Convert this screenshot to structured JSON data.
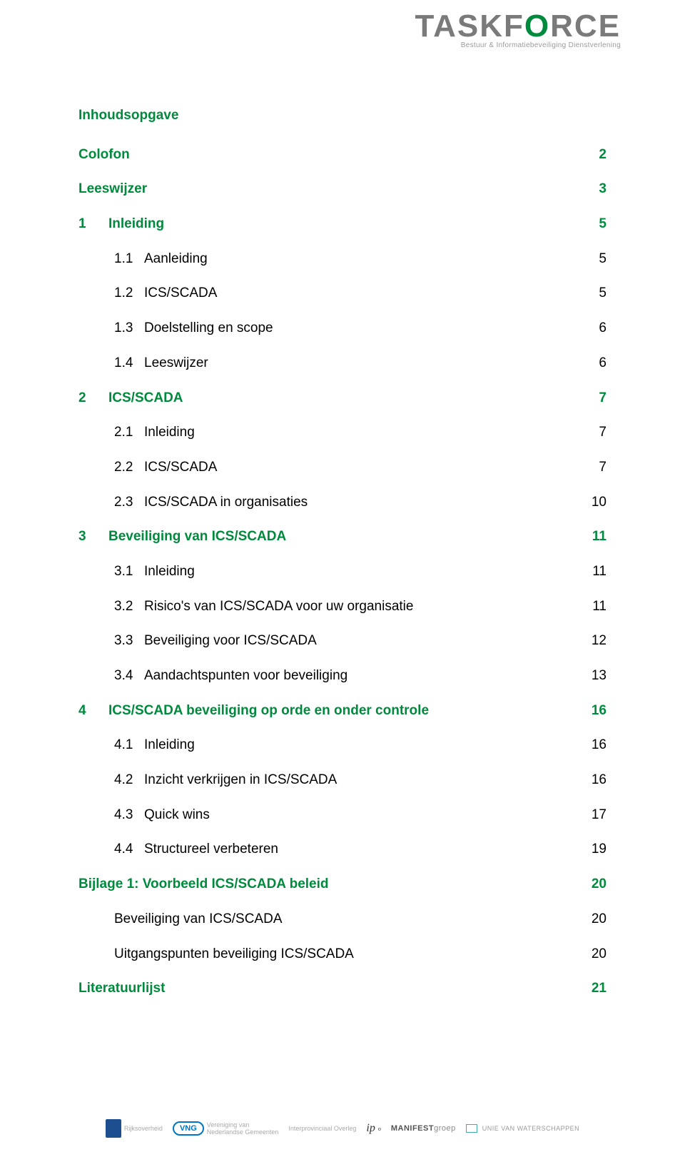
{
  "logo": {
    "text_part1": "TASKF",
    "text_part2": "ORCE",
    "o_char": "O",
    "tagline": "Bestuur & Informatiebeveiliging Dienstverlening"
  },
  "title": "Inhoudsopgave",
  "entries": [
    {
      "level": 0,
      "style": "green",
      "num": "",
      "label": "Colofon",
      "page": "2"
    },
    {
      "level": 0,
      "style": "green",
      "num": "",
      "label": "Leeswijzer",
      "page": "3"
    },
    {
      "level": 0,
      "style": "green",
      "num": "1",
      "label": "Inleiding",
      "page": "5"
    },
    {
      "level": 1,
      "style": "black",
      "num": "1.1",
      "label": "Aanleiding",
      "page": "5"
    },
    {
      "level": 1,
      "style": "black",
      "num": "1.2",
      "label": "ICS/SCADA",
      "page": "5"
    },
    {
      "level": 1,
      "style": "black",
      "num": "1.3",
      "label": "Doelstelling en scope",
      "page": "6"
    },
    {
      "level": 1,
      "style": "black",
      "num": "1.4",
      "label": "Leeswijzer",
      "page": "6"
    },
    {
      "level": 0,
      "style": "green",
      "num": "2",
      "label": "ICS/SCADA",
      "page": "7"
    },
    {
      "level": 1,
      "style": "black",
      "num": "2.1",
      "label": "Inleiding",
      "page": "7"
    },
    {
      "level": 1,
      "style": "black",
      "num": "2.2",
      "label": "ICS/SCADA",
      "page": "7"
    },
    {
      "level": 1,
      "style": "black",
      "num": "2.3",
      "label": "ICS/SCADA in organisaties",
      "page": "10"
    },
    {
      "level": 0,
      "style": "green",
      "num": "3",
      "label": "Beveiliging van ICS/SCADA",
      "page": "11"
    },
    {
      "level": 1,
      "style": "black",
      "num": "3.1",
      "label": "Inleiding",
      "page": "11"
    },
    {
      "level": 1,
      "style": "black",
      "num": "3.2",
      "label": "Risico's van ICS/SCADA voor uw organisatie",
      "page": "11"
    },
    {
      "level": 1,
      "style": "black",
      "num": "3.3",
      "label": "Beveiliging voor ICS/SCADA",
      "page": "12"
    },
    {
      "level": 1,
      "style": "black",
      "num": "3.4",
      "label": "Aandachtspunten voor beveiliging",
      "page": "13"
    },
    {
      "level": 0,
      "style": "green",
      "num": "4",
      "label": "ICS/SCADA beveiliging op orde en onder controle",
      "page": "16"
    },
    {
      "level": 1,
      "style": "black",
      "num": "4.1",
      "label": "Inleiding",
      "page": "16"
    },
    {
      "level": 1,
      "style": "black",
      "num": "4.2",
      "label": "Inzicht verkrijgen in ICS/SCADA",
      "page": "16"
    },
    {
      "level": 1,
      "style": "black",
      "num": "4.3",
      "label": "Quick wins",
      "page": "17"
    },
    {
      "level": 1,
      "style": "black",
      "num": "4.4",
      "label": "Structureel verbeteren",
      "page": "19"
    },
    {
      "level": 0,
      "style": "green",
      "num": "",
      "label": "Bijlage 1: Voorbeeld ICS/SCADA beleid",
      "page": "20"
    },
    {
      "level": 1,
      "style": "black",
      "num": "",
      "label": "Beveiliging van ICS/SCADA",
      "page": "20"
    },
    {
      "level": 1,
      "style": "black",
      "num": "",
      "label": "Uitgangspunten beveiliging ICS/SCADA",
      "page": "20"
    },
    {
      "level": 0,
      "style": "green",
      "num": "",
      "label": "Literatuurlijst",
      "page": "21"
    }
  ],
  "footer": {
    "items": [
      "Rijksoverheid",
      "VNG",
      "Interprovinciaal Overleg",
      "ip",
      "MANIFEST",
      "groep",
      "UNIE VAN WATERSCHAPPEN"
    ]
  },
  "colors": {
    "brand_green": "#008a3d",
    "text_black": "#000000",
    "logo_grey": "#7a7a7a"
  }
}
